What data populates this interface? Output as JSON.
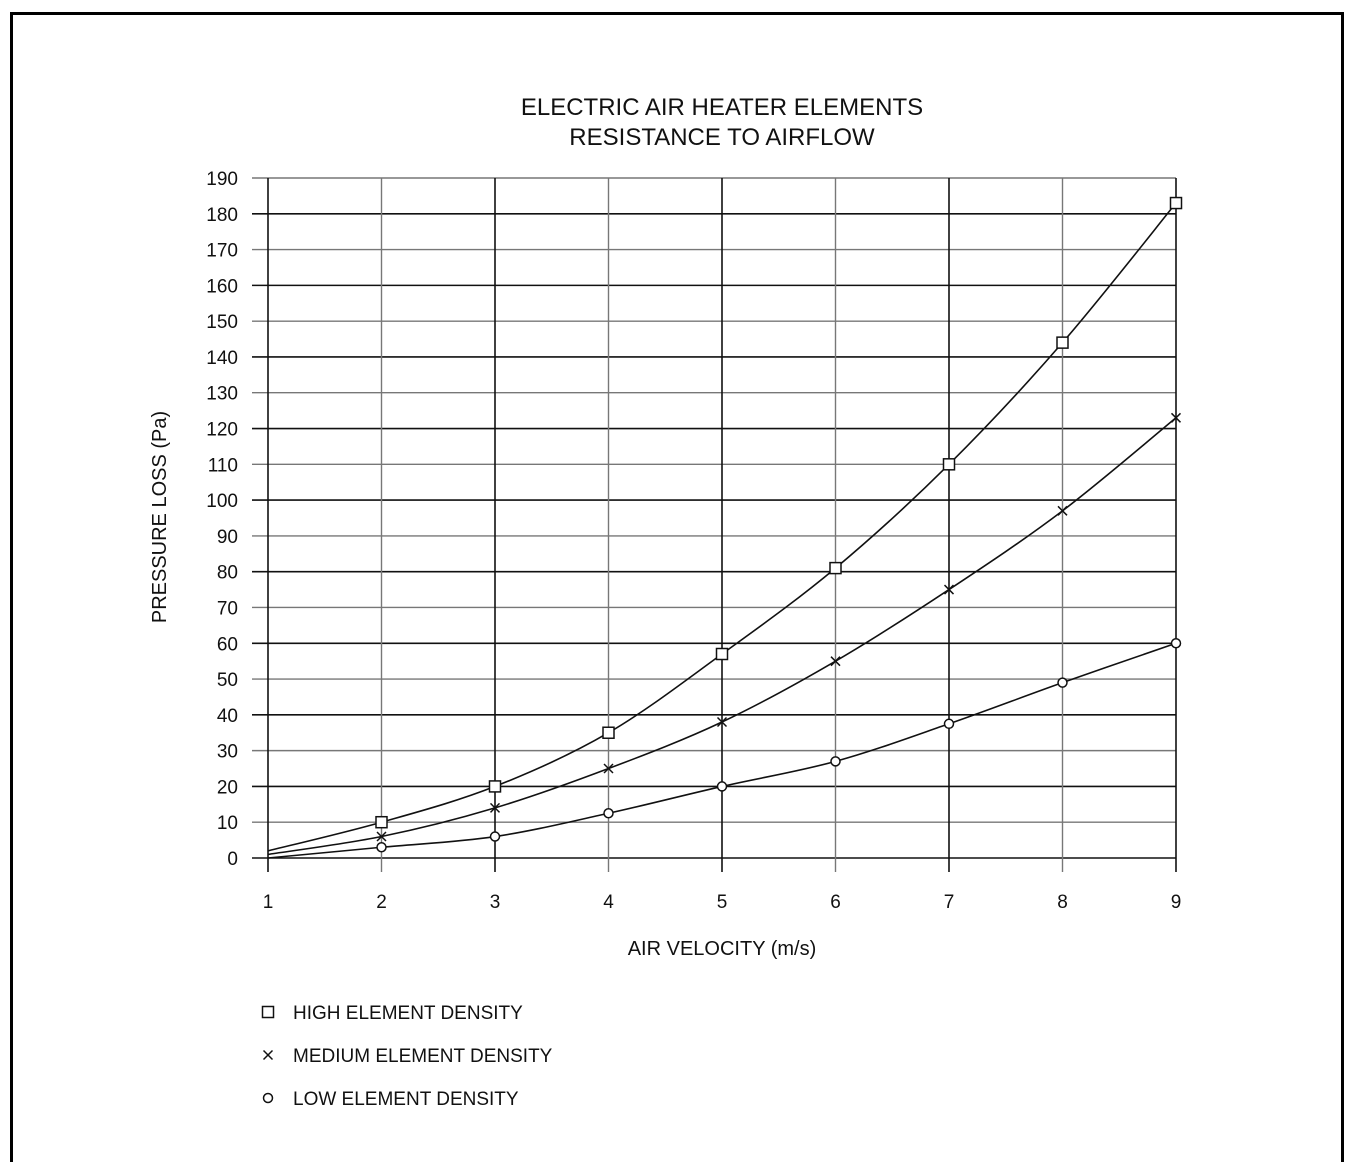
{
  "chart_data": {
    "type": "line",
    "title": [
      "ELECTRIC AIR HEATER ELEMENTS",
      "RESISTANCE TO AIRFLOW"
    ],
    "xlabel": "AIR VELOCITY (m/s)",
    "ylabel": "PRESSURE LOSS (Pa)",
    "xlim": [
      1,
      9
    ],
    "ylim": [
      0,
      190
    ],
    "x_ticks": [
      1,
      2,
      3,
      4,
      5,
      6,
      7,
      8,
      9
    ],
    "y_ticks": [
      0,
      10,
      20,
      30,
      40,
      50,
      60,
      70,
      80,
      90,
      100,
      110,
      120,
      130,
      140,
      150,
      160,
      170,
      180,
      190
    ],
    "grid": true,
    "legend_position": "bottom-left",
    "series": [
      {
        "name": "HIGH ELEMENT DENSITY",
        "marker": "square",
        "color": "#111111",
        "x": [
          1,
          2,
          3,
          4,
          5,
          6,
          7,
          8,
          9
        ],
        "y": [
          2,
          10,
          20,
          35,
          57,
          81,
          110,
          144,
          183
        ],
        "marker_x": [
          2,
          3,
          4,
          5,
          6,
          7,
          8,
          9
        ]
      },
      {
        "name": "MEDIUM ELEMENT DENSITY",
        "marker": "cross",
        "color": "#111111",
        "x": [
          1,
          2,
          3,
          4,
          5,
          6,
          7,
          8,
          9
        ],
        "y": [
          1,
          6,
          14,
          25,
          38,
          55,
          75,
          97,
          123
        ],
        "marker_x": [
          2,
          3,
          4,
          5,
          6,
          7,
          8,
          9
        ]
      },
      {
        "name": "LOW ELEMENT DENSITY",
        "marker": "circle",
        "color": "#111111",
        "x": [
          1,
          2,
          3,
          4,
          5,
          6,
          7,
          8,
          9
        ],
        "y": [
          0,
          3,
          6,
          12.5,
          20,
          27,
          37.5,
          49,
          60
        ],
        "marker_x": [
          2,
          3,
          4,
          5,
          6,
          7,
          8,
          9
        ]
      }
    ]
  }
}
